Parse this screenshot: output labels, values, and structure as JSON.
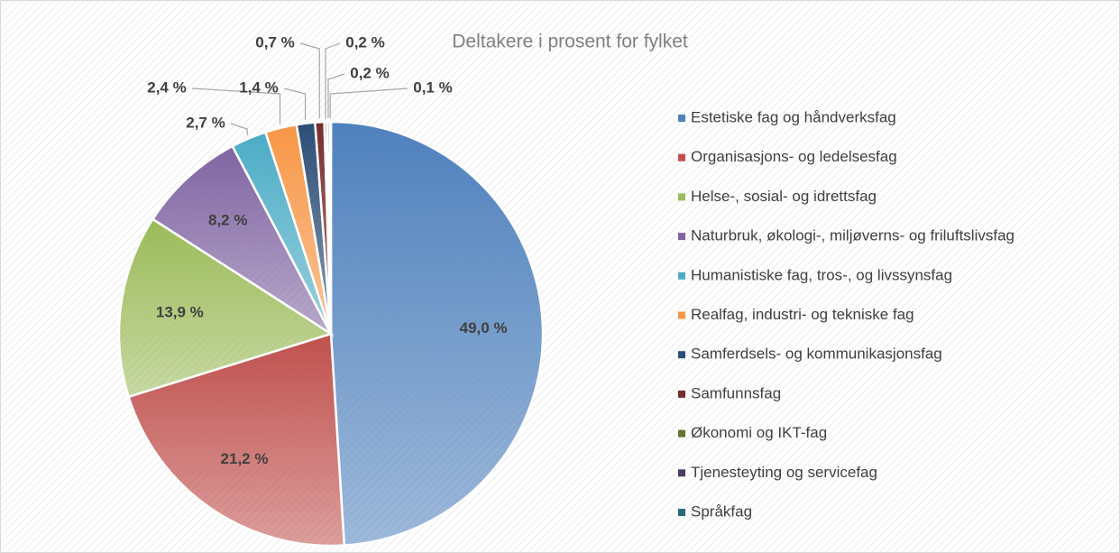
{
  "chart_data": {
    "type": "pie",
    "title": "Deltakere i prosent for fylket",
    "categories": [
      "Estetiske fag og håndverksfag",
      "Organisasjons- og ledelsesfag",
      "Helse-, sosial- og idrettsfag",
      "Naturbruk, økologi-, miljøverns- og friluftslivsfag",
      "Humanistiske fag, tros-, og livssynsfag",
      "Realfag, industri- og tekniske fag",
      "Samferdsels- og kommunikasjonsfag",
      "Samfunnsfag",
      "Økonomi og IKT-fag",
      "Tjenesteyting og servicefag",
      "Språkfag"
    ],
    "values": [
      49.0,
      21.2,
      13.9,
      8.2,
      2.7,
      2.4,
      1.4,
      0.7,
      0.2,
      0.2,
      0.1
    ],
    "value_labels": [
      "49,0 %",
      "21,2 %",
      "13,9 %",
      "8,2 %",
      "2,7 %",
      "2,4 %",
      "1,4 %",
      "0,7 %",
      "0,2 %",
      "0,2 %",
      "0,1 %"
    ],
    "colors": [
      "#4f81bd",
      "#c0504d",
      "#9bbb59",
      "#8064a2",
      "#4bacc6",
      "#f79646",
      "#2c4d75",
      "#772c2a",
      "#5f7530",
      "#4d3b62",
      "#276a7c"
    ],
    "legend": "right"
  }
}
